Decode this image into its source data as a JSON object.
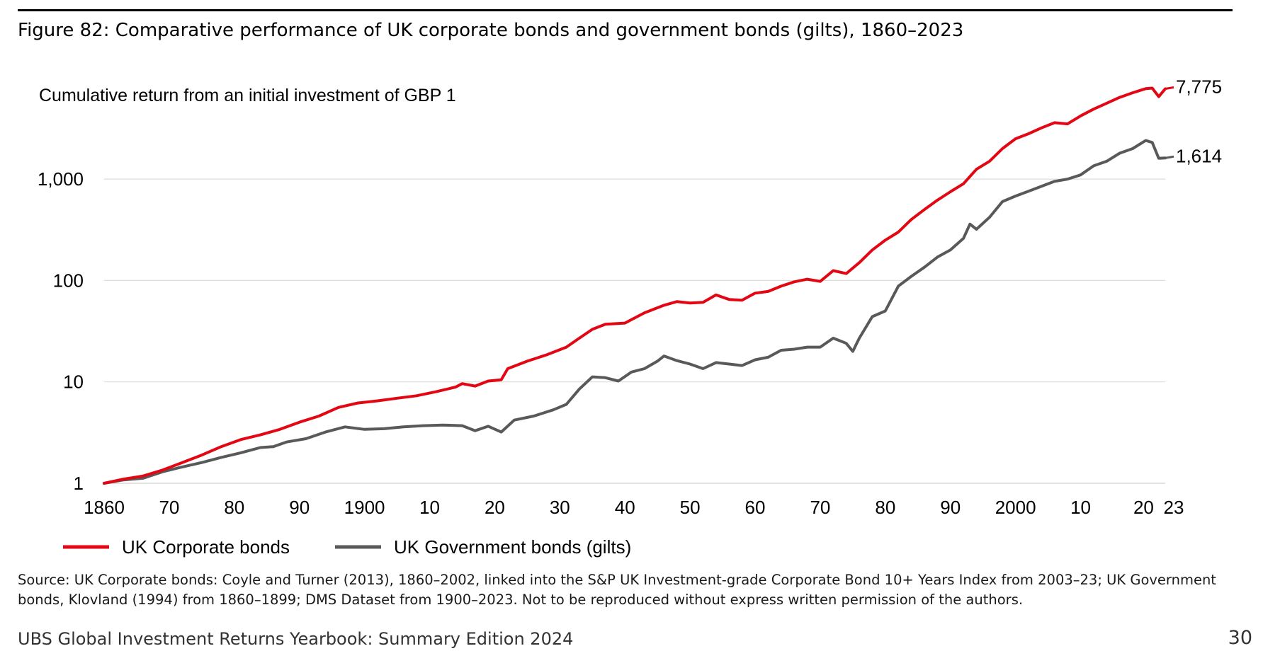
{
  "figure_title": "Figure 82: Comparative performance of UK corporate bonds and government bonds (gilts), 1860–2023",
  "source_note": "Source: UK Corporate bonds: Coyle and Turner (2013), 1860–2002, linked into the S&P UK Investment-grade Corporate Bond 10+ Years Index from 2003–23; UK Government bonds, Klovland (1994) from 1860–1899; DMS Dataset from 1900–2023. Not to be reproduced without express written permission of the authors.",
  "footer": "UBS Global Investment Returns Yearbook: Summary Edition 2024",
  "page_number": "30",
  "chart_data": {
    "type": "line",
    "subtitle": "Cumulative return from an initial investment of GBP 1",
    "y_scale": "log",
    "ylim": [
      1,
      10000
    ],
    "xlim": [
      1860,
      2023
    ],
    "y_ticks": [
      {
        "value": 1,
        "label": "1"
      },
      {
        "value": 10,
        "label": "10"
      },
      {
        "value": 100,
        "label": "100"
      },
      {
        "value": 1000,
        "label": "1,000"
      }
    ],
    "x_ticks": [
      {
        "value": 1860,
        "label": "1860"
      },
      {
        "value": 1870,
        "label": "70"
      },
      {
        "value": 1880,
        "label": "80"
      },
      {
        "value": 1890,
        "label": "90"
      },
      {
        "value": 1900,
        "label": "1900"
      },
      {
        "value": 1910,
        "label": "10"
      },
      {
        "value": 1920,
        "label": "20"
      },
      {
        "value": 1930,
        "label": "30"
      },
      {
        "value": 1940,
        "label": "40"
      },
      {
        "value": 1950,
        "label": "50"
      },
      {
        "value": 1960,
        "label": "60"
      },
      {
        "value": 1970,
        "label": "70"
      },
      {
        "value": 1980,
        "label": "80"
      },
      {
        "value": 1990,
        "label": "90"
      },
      {
        "value": 2000,
        "label": "2000"
      },
      {
        "value": 2010,
        "label": "10"
      },
      {
        "value": 2020,
        "label": "20"
      },
      {
        "value": 2023,
        "label": "23"
      }
    ],
    "grid": "horizontal",
    "legend_position": "bottom-left",
    "series": [
      {
        "name": "UK Corporate bonds",
        "color": "#e30613",
        "end_label": "7,775",
        "points": [
          [
            1860,
            1.0
          ],
          [
            1863,
            1.1
          ],
          [
            1866,
            1.18
          ],
          [
            1869,
            1.35
          ],
          [
            1872,
            1.6
          ],
          [
            1875,
            1.9
          ],
          [
            1878,
            2.3
          ],
          [
            1881,
            2.7
          ],
          [
            1884,
            3.0
          ],
          [
            1887,
            3.4
          ],
          [
            1890,
            4.0
          ],
          [
            1893,
            4.6
          ],
          [
            1896,
            5.6
          ],
          [
            1899,
            6.2
          ],
          [
            1902,
            6.5
          ],
          [
            1905,
            6.9
          ],
          [
            1908,
            7.3
          ],
          [
            1911,
            8.0
          ],
          [
            1914,
            8.9
          ],
          [
            1915,
            9.6
          ],
          [
            1917,
            9.1
          ],
          [
            1919,
            10.2
          ],
          [
            1921,
            10.5
          ],
          [
            1922,
            13.5
          ],
          [
            1925,
            16.0
          ],
          [
            1928,
            18.5
          ],
          [
            1931,
            22.0
          ],
          [
            1933,
            27.0
          ],
          [
            1935,
            33.0
          ],
          [
            1937,
            37.0
          ],
          [
            1940,
            38.0
          ],
          [
            1943,
            48.0
          ],
          [
            1946,
            57.0
          ],
          [
            1948,
            62.0
          ],
          [
            1950,
            60.0
          ],
          [
            1952,
            61.0
          ],
          [
            1954,
            72.0
          ],
          [
            1956,
            65.0
          ],
          [
            1958,
            64.0
          ],
          [
            1960,
            75.0
          ],
          [
            1962,
            78.0
          ],
          [
            1964,
            88.0
          ],
          [
            1966,
            97.0
          ],
          [
            1968,
            103.0
          ],
          [
            1970,
            98.0
          ],
          [
            1972,
            125.0
          ],
          [
            1974,
            117.0
          ],
          [
            1976,
            150.0
          ],
          [
            1978,
            200.0
          ],
          [
            1980,
            250.0
          ],
          [
            1982,
            300.0
          ],
          [
            1984,
            400.0
          ],
          [
            1986,
            500.0
          ],
          [
            1988,
            620.0
          ],
          [
            1990,
            750.0
          ],
          [
            1992,
            900.0
          ],
          [
            1994,
            1250.0
          ],
          [
            1996,
            1500.0
          ],
          [
            1998,
            2000.0
          ],
          [
            2000,
            2500.0
          ],
          [
            2002,
            2800.0
          ],
          [
            2004,
            3200.0
          ],
          [
            2006,
            3600.0
          ],
          [
            2008,
            3500.0
          ],
          [
            2010,
            4200.0
          ],
          [
            2012,
            4900.0
          ],
          [
            2014,
            5600.0
          ],
          [
            2016,
            6400.0
          ],
          [
            2018,
            7100.0
          ],
          [
            2020,
            7800.0
          ],
          [
            2021,
            7900.0
          ],
          [
            2022,
            6500.0
          ],
          [
            2023,
            7775.0
          ]
        ]
      },
      {
        "name": "UK Government bonds (gilts)",
        "color": "#58595b",
        "end_label": "1,614",
        "points": [
          [
            1860,
            1.0
          ],
          [
            1863,
            1.08
          ],
          [
            1866,
            1.12
          ],
          [
            1869,
            1.3
          ],
          [
            1872,
            1.45
          ],
          [
            1875,
            1.6
          ],
          [
            1878,
            1.8
          ],
          [
            1881,
            2.0
          ],
          [
            1884,
            2.25
          ],
          [
            1886,
            2.3
          ],
          [
            1888,
            2.55
          ],
          [
            1891,
            2.75
          ],
          [
            1894,
            3.2
          ],
          [
            1897,
            3.6
          ],
          [
            1900,
            3.4
          ],
          [
            1903,
            3.45
          ],
          [
            1906,
            3.6
          ],
          [
            1909,
            3.7
          ],
          [
            1912,
            3.75
          ],
          [
            1915,
            3.7
          ],
          [
            1917,
            3.3
          ],
          [
            1919,
            3.65
          ],
          [
            1921,
            3.2
          ],
          [
            1923,
            4.2
          ],
          [
            1926,
            4.6
          ],
          [
            1929,
            5.3
          ],
          [
            1931,
            6.0
          ],
          [
            1933,
            8.5
          ],
          [
            1935,
            11.2
          ],
          [
            1937,
            11.0
          ],
          [
            1939,
            10.2
          ],
          [
            1941,
            12.5
          ],
          [
            1943,
            13.5
          ],
          [
            1945,
            16.0
          ],
          [
            1946,
            18.0
          ],
          [
            1948,
            16.2
          ],
          [
            1950,
            15.0
          ],
          [
            1952,
            13.5
          ],
          [
            1954,
            15.5
          ],
          [
            1956,
            15.0
          ],
          [
            1958,
            14.5
          ],
          [
            1960,
            16.5
          ],
          [
            1962,
            17.5
          ],
          [
            1964,
            20.5
          ],
          [
            1966,
            21.0
          ],
          [
            1968,
            22.0
          ],
          [
            1970,
            22.0
          ],
          [
            1972,
            27.0
          ],
          [
            1974,
            24.0
          ],
          [
            1975,
            20.0
          ],
          [
            1976,
            27.0
          ],
          [
            1978,
            44.0
          ],
          [
            1980,
            50.0
          ],
          [
            1982,
            88.0
          ],
          [
            1984,
            110.0
          ],
          [
            1986,
            135.0
          ],
          [
            1988,
            170.0
          ],
          [
            1990,
            200.0
          ],
          [
            1992,
            260.0
          ],
          [
            1993,
            360.0
          ],
          [
            1994,
            320.0
          ],
          [
            1996,
            420.0
          ],
          [
            1998,
            600.0
          ],
          [
            2000,
            680.0
          ],
          [
            2002,
            760.0
          ],
          [
            2004,
            850.0
          ],
          [
            2006,
            950.0
          ],
          [
            2008,
            1000.0
          ],
          [
            2010,
            1100.0
          ],
          [
            2012,
            1350.0
          ],
          [
            2014,
            1500.0
          ],
          [
            2016,
            1800.0
          ],
          [
            2018,
            2000.0
          ],
          [
            2020,
            2400.0
          ],
          [
            2021,
            2300.0
          ],
          [
            2022,
            1600.0
          ],
          [
            2023,
            1614.0
          ]
        ]
      }
    ]
  }
}
